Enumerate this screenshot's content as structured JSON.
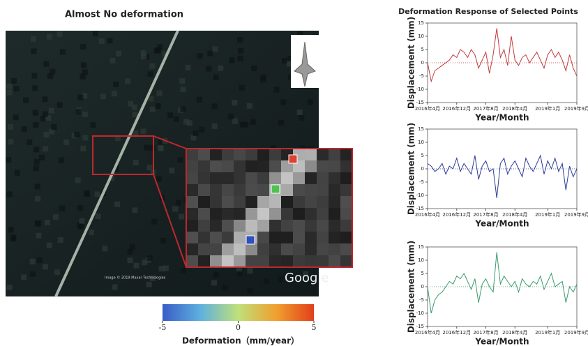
{
  "panel_title": "Deformation Response of Selected Points",
  "map": {
    "credit": "Image © 2019 Maxar Technologies",
    "brand": "Google"
  },
  "chart_data": [
    {
      "type": "colorbar",
      "title": "Almost No deformation",
      "xlabel": "Deformation（mm/year）",
      "xlim": [
        -5,
        5
      ],
      "xticks": [
        -5,
        0,
        5
      ],
      "colors": [
        "#3a5cc6",
        "#5fb0e0",
        "#bfe07a",
        "#f0a030",
        "#e2401a"
      ]
    },
    {
      "type": "line",
      "color": "#c0393b",
      "ylabel": "Displacement (mm)",
      "xlabel": "Year/Month",
      "ylim": [
        -15,
        15
      ],
      "yticks": [
        -15,
        -10,
        -5,
        0,
        5,
        10,
        15
      ],
      "x": [
        "2016-04",
        "2016-05",
        "2016-06",
        "2016-07",
        "2016-08",
        "2016-09",
        "2016-10",
        "2016-11",
        "2016-12",
        "2017-01",
        "2017-02",
        "2017-03",
        "2017-04",
        "2017-05",
        "2017-06",
        "2017-07",
        "2017-08",
        "2017-09",
        "2017-10",
        "2017-11",
        "2017-12",
        "2018-01",
        "2018-02",
        "2018-03",
        "2018-04",
        "2018-05",
        "2018-06",
        "2018-07",
        "2018-08",
        "2018-09",
        "2018-10",
        "2018-11",
        "2018-12",
        "2019-01",
        "2019-02",
        "2019-03",
        "2019-04",
        "2019-05",
        "2019-06",
        "2019-07",
        "2019-08",
        "2019-09"
      ],
      "values": [
        0,
        -7,
        -3,
        -2,
        -1,
        0,
        1,
        3,
        2,
        5,
        4,
        2,
        5,
        3,
        -2,
        1,
        4,
        -4,
        3,
        13,
        2,
        5,
        -1,
        10,
        1,
        -1,
        2,
        3,
        0,
        2,
        4,
        1,
        -2,
        3,
        5,
        2,
        4,
        1,
        -3,
        3,
        -2,
        -5
      ],
      "xticks": [
        {
          "value": "2016-04",
          "label": "2016年4月"
        },
        {
          "value": "2016-12",
          "label": "2016年12月"
        },
        {
          "value": "2017-08",
          "label": "2017年8月"
        },
        {
          "value": "2018-04",
          "label": "2018年4月"
        },
        {
          "value": "2019-01",
          "label": "2019年1月"
        },
        {
          "value": "2019-09",
          "label": "2019年9月"
        }
      ]
    },
    {
      "type": "line",
      "color": "#2b3a96",
      "ylabel": "Displacement (mm)",
      "xlabel": "Year/Month",
      "ylim": [
        -15,
        15
      ],
      "yticks": [
        -15,
        -10,
        -5,
        0,
        5,
        10,
        15
      ],
      "x": [
        "2016-04",
        "2016-05",
        "2016-06",
        "2016-07",
        "2016-08",
        "2016-09",
        "2016-10",
        "2016-11",
        "2016-12",
        "2017-01",
        "2017-02",
        "2017-03",
        "2017-04",
        "2017-05",
        "2017-06",
        "2017-07",
        "2017-08",
        "2017-09",
        "2017-10",
        "2017-11",
        "2017-12",
        "2018-01",
        "2018-02",
        "2018-03",
        "2018-04",
        "2018-05",
        "2018-06",
        "2018-07",
        "2018-08",
        "2018-09",
        "2018-10",
        "2018-11",
        "2018-12",
        "2019-01",
        "2019-02",
        "2019-03",
        "2019-04",
        "2019-05",
        "2019-06",
        "2019-07",
        "2019-08",
        "2019-09"
      ],
      "values": [
        2,
        1,
        -1,
        0,
        2,
        -2,
        1,
        0,
        4,
        -1,
        2,
        0,
        -2,
        5,
        -4,
        1,
        3,
        -1,
        0,
        -11,
        2,
        4,
        -2,
        1,
        3,
        0,
        -3,
        4,
        1,
        -1,
        2,
        5,
        -2,
        3,
        0,
        4,
        -1,
        2,
        -8,
        1,
        -3,
        0
      ],
      "xticks": [
        {
          "value": "2016-04",
          "label": "2016年4月"
        },
        {
          "value": "2016-12",
          "label": "2016年12月"
        },
        {
          "value": "2017-08",
          "label": "2017年8月"
        },
        {
          "value": "2018-04",
          "label": "2018年4月"
        },
        {
          "value": "2019-01",
          "label": "2019年1月"
        },
        {
          "value": "2019-09",
          "label": "2019年9月"
        }
      ]
    },
    {
      "type": "line",
      "color": "#3a9a6c",
      "ylabel": "Displacement (mm)",
      "xlabel": "Year/Month",
      "ylim": [
        -15,
        15
      ],
      "yticks": [
        -15,
        -10,
        -5,
        0,
        5,
        10,
        15
      ],
      "x": [
        "2016-04",
        "2016-05",
        "2016-06",
        "2016-07",
        "2016-08",
        "2016-09",
        "2016-10",
        "2016-11",
        "2016-12",
        "2017-01",
        "2017-02",
        "2017-03",
        "2017-04",
        "2017-05",
        "2017-06",
        "2017-07",
        "2017-08",
        "2017-09",
        "2017-10",
        "2017-11",
        "2017-12",
        "2018-01",
        "2018-02",
        "2018-03",
        "2018-04",
        "2018-05",
        "2018-06",
        "2018-07",
        "2018-08",
        "2018-09",
        "2018-10",
        "2018-11",
        "2018-12",
        "2019-01",
        "2019-02",
        "2019-03",
        "2019-04",
        "2019-05",
        "2019-06",
        "2019-07",
        "2019-08",
        "2019-09"
      ],
      "values": [
        0,
        -10,
        -5,
        -3,
        -2,
        0,
        2,
        1,
        4,
        3,
        5,
        2,
        -1,
        3,
        -6,
        1,
        3,
        0,
        -2,
        13,
        1,
        4,
        2,
        0,
        2,
        -2,
        3,
        1,
        0,
        2,
        1,
        4,
        -1,
        2,
        5,
        0,
        1,
        2,
        -6,
        0,
        -2,
        1
      ],
      "xticks": [
        {
          "value": "2016-04",
          "label": "2016年4月"
        },
        {
          "value": "2016-12",
          "label": "2016年12月"
        },
        {
          "value": "2017-08",
          "label": "2017年8月"
        },
        {
          "value": "2018-04",
          "label": "2018年4月"
        },
        {
          "value": "2019-01",
          "label": "2019年1月"
        },
        {
          "value": "2019-09",
          "label": "2019年9月"
        }
      ]
    }
  ]
}
